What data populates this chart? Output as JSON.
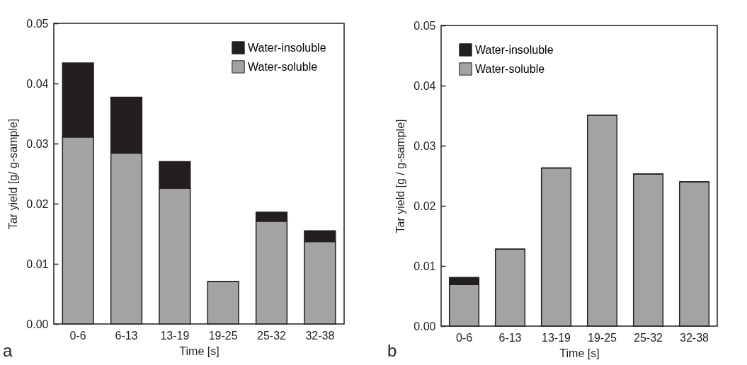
{
  "chart_data": [
    {
      "type": "bar",
      "stacked": true,
      "categories": [
        "0-6",
        "6-13",
        "13-19",
        "19-25",
        "25-32",
        "32-38"
      ],
      "series": [
        {
          "name": "Water-soluble",
          "color": "#a3a3a3",
          "values": [
            0.0311,
            0.0284,
            0.0226,
            0.0071,
            0.0171,
            0.0137
          ]
        },
        {
          "name": "Water-insoluble",
          "color": "#231f20",
          "values": [
            0.0123,
            0.0093,
            0.0044,
            0,
            0.0015,
            0.0018
          ]
        }
      ],
      "xlabel": "Time [s]",
      "ylabel": "Tar yield [g/ g-sample]",
      "ylim": [
        0,
        0.05
      ],
      "yticks": [
        {
          "value": 0,
          "label": "0.00"
        },
        0.01,
        0.02,
        0.03,
        0.04,
        0.05
      ],
      "legend": "top right",
      "annotations": [
        "a"
      ]
    },
    {
      "type": "bar",
      "stacked": true,
      "categories": [
        "0-6",
        "6-13",
        "13-19",
        "19-25",
        "25-32",
        "32-38"
      ],
      "series": [
        {
          "name": "Water-soluble",
          "color": "#a3a3a3",
          "values": [
            0.0069,
            0.0128,
            0.0263,
            0.0351,
            0.0253,
            0.024
          ]
        },
        {
          "name": "Water-insoluble",
          "color": "#231f20",
          "values": [
            0.0012,
            0,
            0,
            0,
            0,
            0
          ]
        }
      ],
      "xlabel": "Time [s]",
      "ylabel": "Tar yield [g / g-sample]",
      "ylim": [
        0,
        0.05
      ],
      "yticks": [
        {
          "value": 0,
          "label": "0.00"
        },
        0.01,
        0.02,
        0.03,
        0.04,
        0.05
      ],
      "legend": "top left",
      "annotations": [
        "b"
      ]
    }
  ]
}
